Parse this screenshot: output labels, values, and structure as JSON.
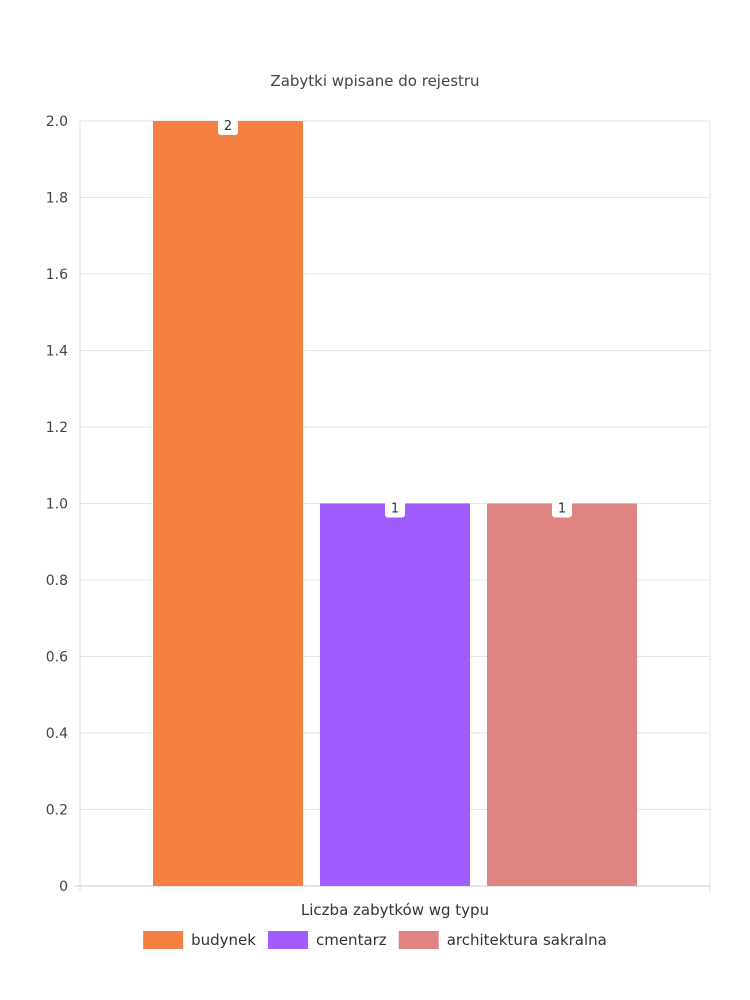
{
  "chart_data": {
    "type": "bar",
    "title": "Zabytki wpisane do rejestru",
    "xlabel": "Liczba zabytków wg typu",
    "ylabel": "",
    "ylim": [
      0,
      2.0
    ],
    "yticks": [
      "0",
      "0.2",
      "0.4",
      "0.6",
      "0.8",
      "1.0",
      "1.2",
      "1.4",
      "1.6",
      "1.8",
      "2.0"
    ],
    "grid": true,
    "legend_position": "bottom",
    "series": [
      {
        "name": "budynek",
        "values": [
          2
        ],
        "label": "2",
        "color": "#f48141"
      },
      {
        "name": "cmentarz",
        "values": [
          1
        ],
        "label": "1",
        "color": "#a05cff"
      },
      {
        "name": "architektura sakralna",
        "values": [
          1
        ],
        "label": "1",
        "color": "#e08383"
      }
    ]
  }
}
